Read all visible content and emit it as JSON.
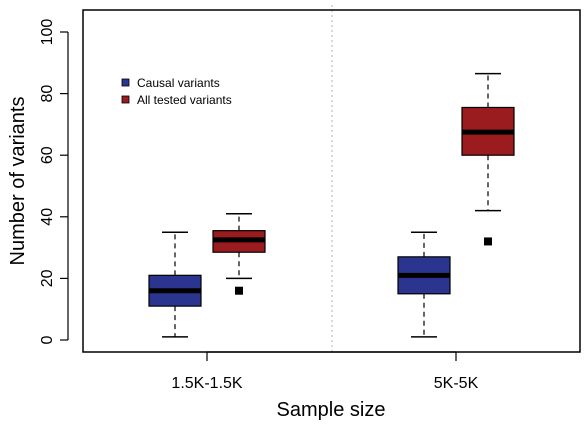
{
  "chart_data": {
    "type": "box",
    "xlabel": "Sample size",
    "ylabel": "Number of variants",
    "ylim": [
      0,
      100
    ],
    "yticks": [
      0,
      20,
      40,
      60,
      80,
      100
    ],
    "categories": [
      "1.5K-1.5K",
      "5K-5K"
    ],
    "series": [
      {
        "name": "Causal variants",
        "color": "#2b3590",
        "boxes": [
          {
            "category": "1.5K-1.5K",
            "whisker_low": 1,
            "q1": 11,
            "median": 16,
            "q3": 21,
            "whisker_high": 35,
            "outliers": []
          },
          {
            "category": "5K-5K",
            "whisker_low": 1,
            "q1": 15,
            "median": 21,
            "q3": 27,
            "whisker_high": 35,
            "outliers": []
          }
        ]
      },
      {
        "name": "All tested variants",
        "color": "#9b1c1f",
        "boxes": [
          {
            "category": "1.5K-1.5K",
            "whisker_low": 20,
            "q1": 28.5,
            "median": 32.5,
            "q3": 35.5,
            "whisker_high": 41,
            "outliers": [
              16
            ]
          },
          {
            "category": "5K-5K",
            "whisker_low": 42,
            "q1": 60,
            "median": 67.5,
            "q3": 75.5,
            "whisker_high": 86.5,
            "outliers": [
              32
            ]
          }
        ]
      }
    ],
    "legend_position": "top-left",
    "grid": false,
    "separator": "dotted vertical line between groups"
  }
}
